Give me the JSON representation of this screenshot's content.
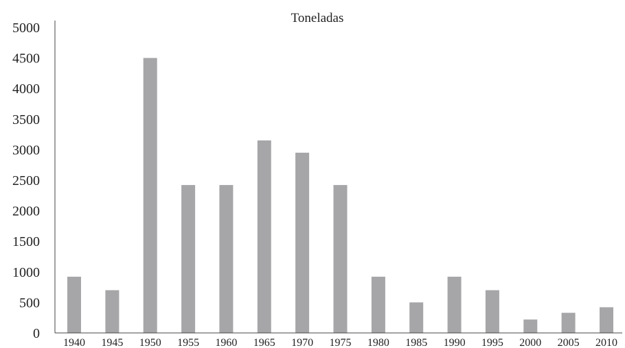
{
  "chart_data": {
    "type": "bar",
    "title": "Toneladas",
    "xlabel": "",
    "ylabel": "",
    "categories": [
      "1940",
      "1945",
      "1950",
      "1955",
      "1960",
      "1965",
      "1970",
      "1975",
      "1980",
      "1985",
      "1990",
      "1995",
      "2000",
      "2005",
      "2010"
    ],
    "values": [
      920,
      700,
      4500,
      2420,
      2420,
      3150,
      2950,
      2420,
      920,
      500,
      920,
      700,
      220,
      330,
      420
    ],
    "ylim": [
      0,
      5000
    ],
    "yticks": [
      "0",
      "500",
      "1000",
      "1500",
      "2000",
      "2500",
      "3000",
      "3500",
      "4000",
      "4500",
      "5000"
    ],
    "grid": false,
    "legend": "none",
    "bar_color": "#a6a6a8",
    "axis_color": "#444444"
  }
}
